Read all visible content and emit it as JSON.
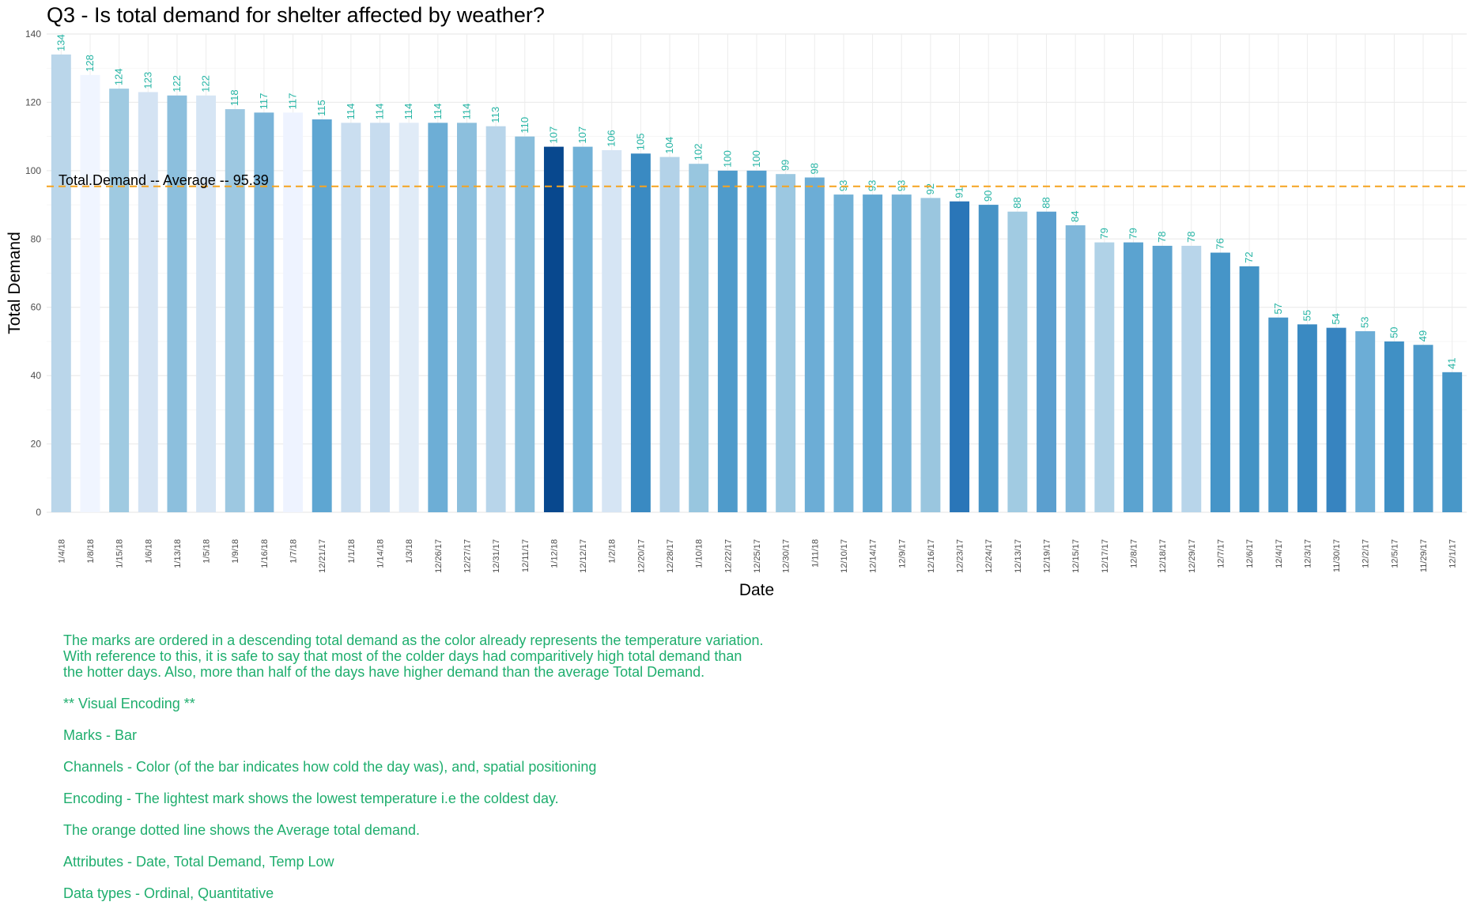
{
  "chart_data": {
    "type": "bar",
    "title": "Q3 - Is total demand for shelter affected by weather?",
    "xlabel": "Date",
    "ylabel": "Total Demand",
    "ylim": [
      0,
      140
    ],
    "yticks": [
      0,
      20,
      40,
      60,
      80,
      100,
      120,
      140
    ],
    "grid": true,
    "categories": [
      "1/4/18",
      "1/8/18",
      "1/15/18",
      "1/6/18",
      "1/13/18",
      "1/5/18",
      "1/9/18",
      "1/16/18",
      "1/7/18",
      "12/21/17",
      "1/1/18",
      "1/14/18",
      "1/3/18",
      "12/26/17",
      "12/27/17",
      "12/31/17",
      "12/11/17",
      "1/12/18",
      "12/12/17",
      "1/2/18",
      "12/20/17",
      "12/28/17",
      "1/10/18",
      "12/22/17",
      "12/25/17",
      "12/30/17",
      "1/11/18",
      "12/10/17",
      "12/14/17",
      "12/9/17",
      "12/16/17",
      "12/23/17",
      "12/24/17",
      "12/13/17",
      "12/19/17",
      "12/15/17",
      "12/17/17",
      "12/8/17",
      "12/18/17",
      "12/29/17",
      "12/7/17",
      "12/6/17",
      "12/4/17",
      "12/3/17",
      "11/30/17",
      "12/2/17",
      "12/5/17",
      "11/29/17",
      "12/1/17"
    ],
    "values": [
      134,
      128,
      124,
      123,
      122,
      122,
      118,
      117,
      117,
      115,
      114,
      114,
      114,
      114,
      114,
      113,
      110,
      107,
      107,
      106,
      105,
      104,
      102,
      100,
      100,
      99,
      98,
      93,
      93,
      93,
      92,
      91,
      90,
      88,
      88,
      84,
      79,
      79,
      78,
      78,
      76,
      72,
      57,
      55,
      54,
      53,
      50,
      49,
      41
    ],
    "colors": [
      "#bad6ea",
      "#f0f5ff",
      "#9fcae1",
      "#d4e3f3",
      "#8cbfdd",
      "#d6e5f4",
      "#9dc8e1",
      "#7ab4d9",
      "#eef3ff",
      "#5ea6d2",
      "#cadef0",
      "#c7dcef",
      "#e0ebf7",
      "#6daed6",
      "#8cbfdd",
      "#b8d5ea",
      "#89bedc",
      "#08488e",
      "#71b1d7",
      "#d6e5f4",
      "#3a8ac2",
      "#b3d2e8",
      "#98c6df",
      "#4f9bcb",
      "#539ecd",
      "#9cc8e1",
      "#6cadd6",
      "#72b1d7",
      "#64a9d3",
      "#76b3d8",
      "#9ac6df",
      "#2a76b8",
      "#4693c6",
      "#a1cbe2",
      "#5b9fcf",
      "#7fb7da",
      "#b0d2e7",
      "#5ba3d0",
      "#5ca3d0",
      "#b8d5ea",
      "#4695c8",
      "#4393c5",
      "#4795c7",
      "#3a8ac2",
      "#3784c0",
      "#6cadd6",
      "#4090c5",
      "#4f9bcb",
      "#4897c8"
    ],
    "average": 95.39,
    "average_label": "Total.Demand -- Average -- 95.39",
    "average_color": "#f5a31f",
    "label_color": "#26b5a5"
  },
  "notes": {
    "intro": "The marks are ordered in a descending total demand as the color already represents the temperature variation.\nWith reference to this, it is safe to say that most of the colder days had comparitively high total demand than\nthe hotter days. Also, more than half of the days have higher demand than the average Total Demand.",
    "encoding_header": "** Visual Encoding **",
    "marks": "Marks - Bar",
    "channels": "Channels - Color (of the bar indicates how cold the day was), and, spatial positioning",
    "encoding": "Encoding - The lightest mark shows the lowest temperature i.e the coldest day.",
    "avg_line": "The orange dotted line shows the Average total demand.",
    "attributes": "Attributes - Date, Total Demand, Temp Low",
    "data_types": "Data types - Ordinal, Quantitative",
    "color": "#1fae6e"
  }
}
